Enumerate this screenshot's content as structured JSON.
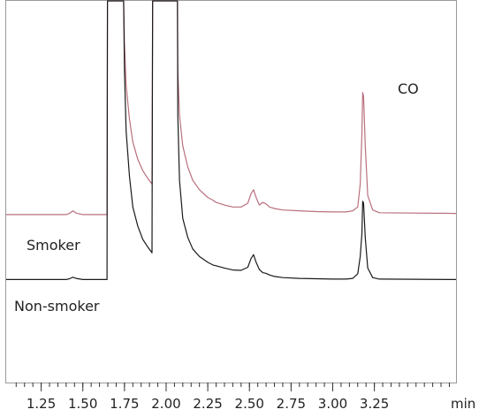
{
  "chart_data": {
    "type": "line",
    "xlabel": "min",
    "xlim": [
      1.04,
      3.74
    ],
    "ylim": [
      0,
      100
    ],
    "x_ticks": [
      "1.25",
      "1.50",
      "1.75",
      "2.00",
      "2.25",
      "2.50",
      "2.75",
      "3.00",
      "3.25"
    ],
    "series": [
      {
        "name": "Smoker",
        "color": "#b9707e",
        "x": [
          1.04,
          1.4,
          1.42,
          1.44,
          1.46,
          1.5,
          1.645,
          1.648,
          1.65,
          1.74,
          1.745,
          1.75,
          1.76,
          1.78,
          1.8,
          1.83,
          1.86,
          1.89,
          1.915,
          1.919,
          1.922,
          2.065,
          2.068,
          2.07,
          2.08,
          2.1,
          2.13,
          2.16,
          2.2,
          2.25,
          2.28,
          2.3,
          2.35,
          2.4,
          2.45,
          2.49,
          2.51,
          2.525,
          2.54,
          2.56,
          2.58,
          2.6,
          2.62,
          2.65,
          2.7,
          2.8,
          2.9,
          3.0,
          3.08,
          3.12,
          3.15,
          3.165,
          3.175,
          3.18,
          3.185,
          3.195,
          3.21,
          3.24,
          3.28,
          3.74
        ],
        "y": [
          44,
          44,
          44.3,
          45,
          44.4,
          44,
          44,
          100,
          100,
          100,
          100,
          89,
          78,
          69,
          63,
          58.5,
          55.5,
          53.5,
          52,
          100,
          100,
          100,
          100,
          82,
          70,
          62,
          56.5,
          53,
          50.5,
          48.5,
          47.8,
          47.2,
          46.5,
          46,
          46,
          47,
          49.5,
          50.5,
          48.5,
          46.5,
          47.2,
          46.8,
          46,
          45.6,
          45.2,
          45,
          44.8,
          44.7,
          44.7,
          45,
          46,
          52,
          65,
          76,
          75,
          62,
          49,
          45.2,
          44.5,
          44.3
        ]
      },
      {
        "name": "Non-smoker",
        "color": "#1a1a1a",
        "x": [
          1.04,
          1.4,
          1.42,
          1.44,
          1.46,
          1.5,
          1.645,
          1.648,
          1.65,
          1.74,
          1.745,
          1.75,
          1.76,
          1.78,
          1.8,
          1.83,
          1.86,
          1.89,
          1.915,
          1.919,
          1.922,
          2.065,
          2.068,
          2.07,
          2.08,
          2.1,
          2.13,
          2.16,
          2.2,
          2.25,
          2.28,
          2.3,
          2.35,
          2.4,
          2.45,
          2.49,
          2.51,
          2.525,
          2.54,
          2.56,
          2.58,
          2.6,
          2.62,
          2.65,
          2.7,
          2.8,
          2.9,
          3.0,
          3.08,
          3.12,
          3.15,
          3.165,
          3.175,
          3.18,
          3.185,
          3.195,
          3.21,
          3.24,
          3.28,
          3.74
        ],
        "y": [
          27,
          27,
          27.2,
          27.6,
          27.3,
          27,
          27,
          100,
          100,
          100,
          100,
          82,
          66,
          54,
          46,
          41,
          37.5,
          35.5,
          34,
          100,
          100,
          100,
          100,
          70,
          53,
          43,
          38,
          35,
          33,
          31.5,
          30.8,
          30.6,
          30,
          29.5,
          29.4,
          30.2,
          32.5,
          33.5,
          31.5,
          29.6,
          28.8,
          28.6,
          28.2,
          27.8,
          27.5,
          27.3,
          27.2,
          27.1,
          27.1,
          27.3,
          28.5,
          33,
          39,
          47.5,
          47,
          38,
          30,
          27.5,
          27.1,
          27
        ]
      }
    ],
    "annotations": [
      "Smoker",
      "Non-smoker",
      "CO"
    ]
  }
}
